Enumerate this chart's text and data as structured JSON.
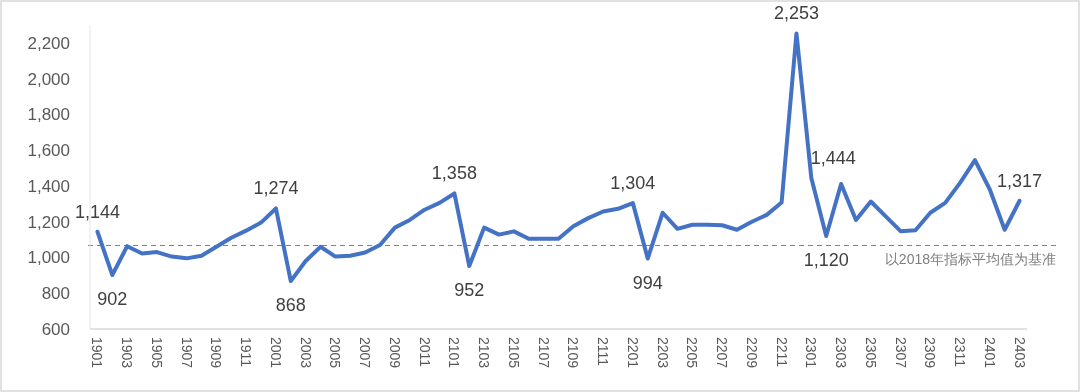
{
  "chart_data": {
    "type": "line",
    "categories": [
      "1901",
      null,
      "1903",
      null,
      "1905",
      null,
      "1907",
      null,
      "1909",
      null,
      "1911",
      null,
      "2001",
      null,
      "2003",
      null,
      "2005",
      null,
      "2007",
      null,
      "2009",
      null,
      "2011",
      null,
      "2101",
      null,
      "2103",
      null,
      "2105",
      null,
      "2107",
      null,
      "2109",
      null,
      "2111",
      null,
      "2201",
      null,
      "2203",
      null,
      "2205",
      null,
      "2207",
      null,
      "2209",
      null,
      "2211",
      null,
      "2301",
      null,
      "2303",
      null,
      "2305",
      null,
      "2307",
      null,
      "2309",
      null,
      "2311",
      null,
      "2401",
      null,
      "2403"
    ],
    "series": [
      {
        "color": "#4472c4",
        "values": [
          1144,
          902,
          1063,
          1022,
          1030,
          1005,
          995,
          1010,
          1060,
          1110,
          1150,
          1195,
          1274,
          868,
          980,
          1060,
          1005,
          1010,
          1028,
          1070,
          1167,
          1210,
          1267,
          1305,
          1358,
          952,
          1167,
          1128,
          1146,
          1105,
          1105,
          1105,
          1175,
          1220,
          1257,
          1272,
          1304,
          994,
          1250,
          1160,
          1183,
          1183,
          1180,
          1155,
          1200,
          1238,
          1307,
          2253,
          1444,
          1120,
          1411,
          1210,
          1313,
          1230,
          1147,
          1152,
          1250,
          1305,
          1417,
          1544,
          1380,
          1155,
          1317
        ],
        "value_labels": [
          "1,144",
          "902",
          null,
          null,
          null,
          null,
          null,
          null,
          null,
          null,
          null,
          null,
          "1,274",
          "868",
          null,
          null,
          null,
          null,
          null,
          null,
          null,
          null,
          null,
          null,
          "1,358",
          "952",
          null,
          null,
          null,
          null,
          null,
          null,
          null,
          null,
          null,
          null,
          "1,304",
          "994",
          null,
          null,
          null,
          null,
          null,
          null,
          null,
          null,
          null,
          "2,253",
          "1,444",
          "1,120",
          null,
          null,
          null,
          null,
          null,
          null,
          null,
          null,
          null,
          null,
          null,
          null,
          "1,317"
        ]
      }
    ],
    "ylim": [
      600,
      2300
    ],
    "yticks": [
      {
        "value": 600,
        "label": "600"
      },
      {
        "value": 800,
        "label": "800"
      },
      {
        "value": 1000,
        "label": "1,000"
      },
      {
        "value": 1200,
        "label": "1,200"
      },
      {
        "value": 1400,
        "label": "1,400"
      },
      {
        "value": 1600,
        "label": "1,600"
      },
      {
        "value": 1800,
        "label": "1,800"
      },
      {
        "value": 2000,
        "label": "2,000"
      },
      {
        "value": 2200,
        "label": "2,200"
      }
    ],
    "ref_lines": [
      {
        "axis": "y",
        "value": 1067,
        "label": "以2018年指标平均值为基准",
        "color": "#7f7f7f",
        "line_style": "dashed"
      }
    ],
    "grid": false,
    "marker": "none",
    "line_style": "solid"
  }
}
